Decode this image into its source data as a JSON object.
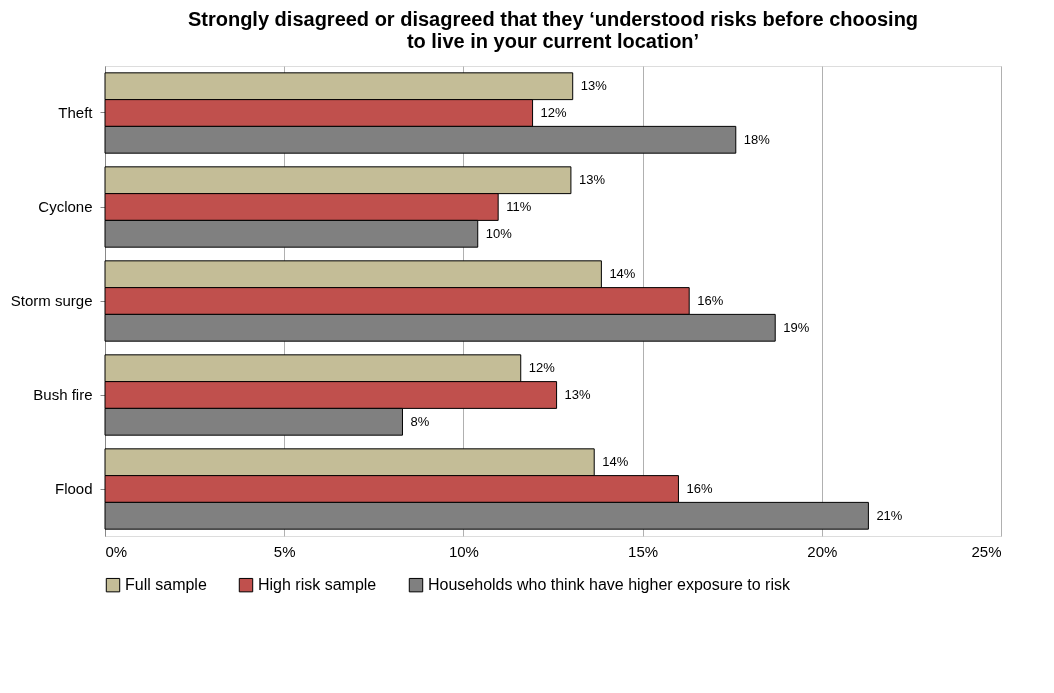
{
  "chart_data": {
    "type": "bar",
    "orientation": "horizontal",
    "title": [
      "Strongly disagreed or disagreed that they ‘understood risks before choosing",
      "to live in your current location’"
    ],
    "categories": [
      "Theft",
      "Cyclone",
      "Storm surge",
      "Bush fire",
      "Flood"
    ],
    "series": [
      {
        "name": "Full sample",
        "color": "#c4bd97",
        "values": [
          13.05,
          13.0,
          13.85,
          11.6,
          13.65
        ],
        "value_labels": [
          "13%",
          "13%",
          "14%",
          "12%",
          "14%"
        ]
      },
      {
        "name": "High risk sample",
        "color": "#c0504d",
        "values": [
          11.93,
          10.97,
          16.3,
          12.6,
          16.0
        ],
        "value_labels": [
          "12%",
          "11%",
          "16%",
          "13%",
          "16%"
        ]
      },
      {
        "name": "Households who think have higher exposure to risk",
        "color": "#808080",
        "values": [
          17.6,
          10.4,
          18.7,
          8.3,
          21.3
        ],
        "value_labels": [
          "18%",
          "10%",
          "19%",
          "8%",
          "21%"
        ]
      }
    ],
    "xlim": [
      0,
      25
    ],
    "xticks": [
      {
        "value": 0,
        "label": "0%"
      },
      {
        "value": 5,
        "label": "5%"
      },
      {
        "value": 10,
        "label": "10%"
      },
      {
        "value": 15,
        "label": "15%"
      },
      {
        "value": 20,
        "label": "20%"
      },
      {
        "value": 25,
        "label": "25%"
      }
    ],
    "grid": "x",
    "legend": "bottom"
  }
}
